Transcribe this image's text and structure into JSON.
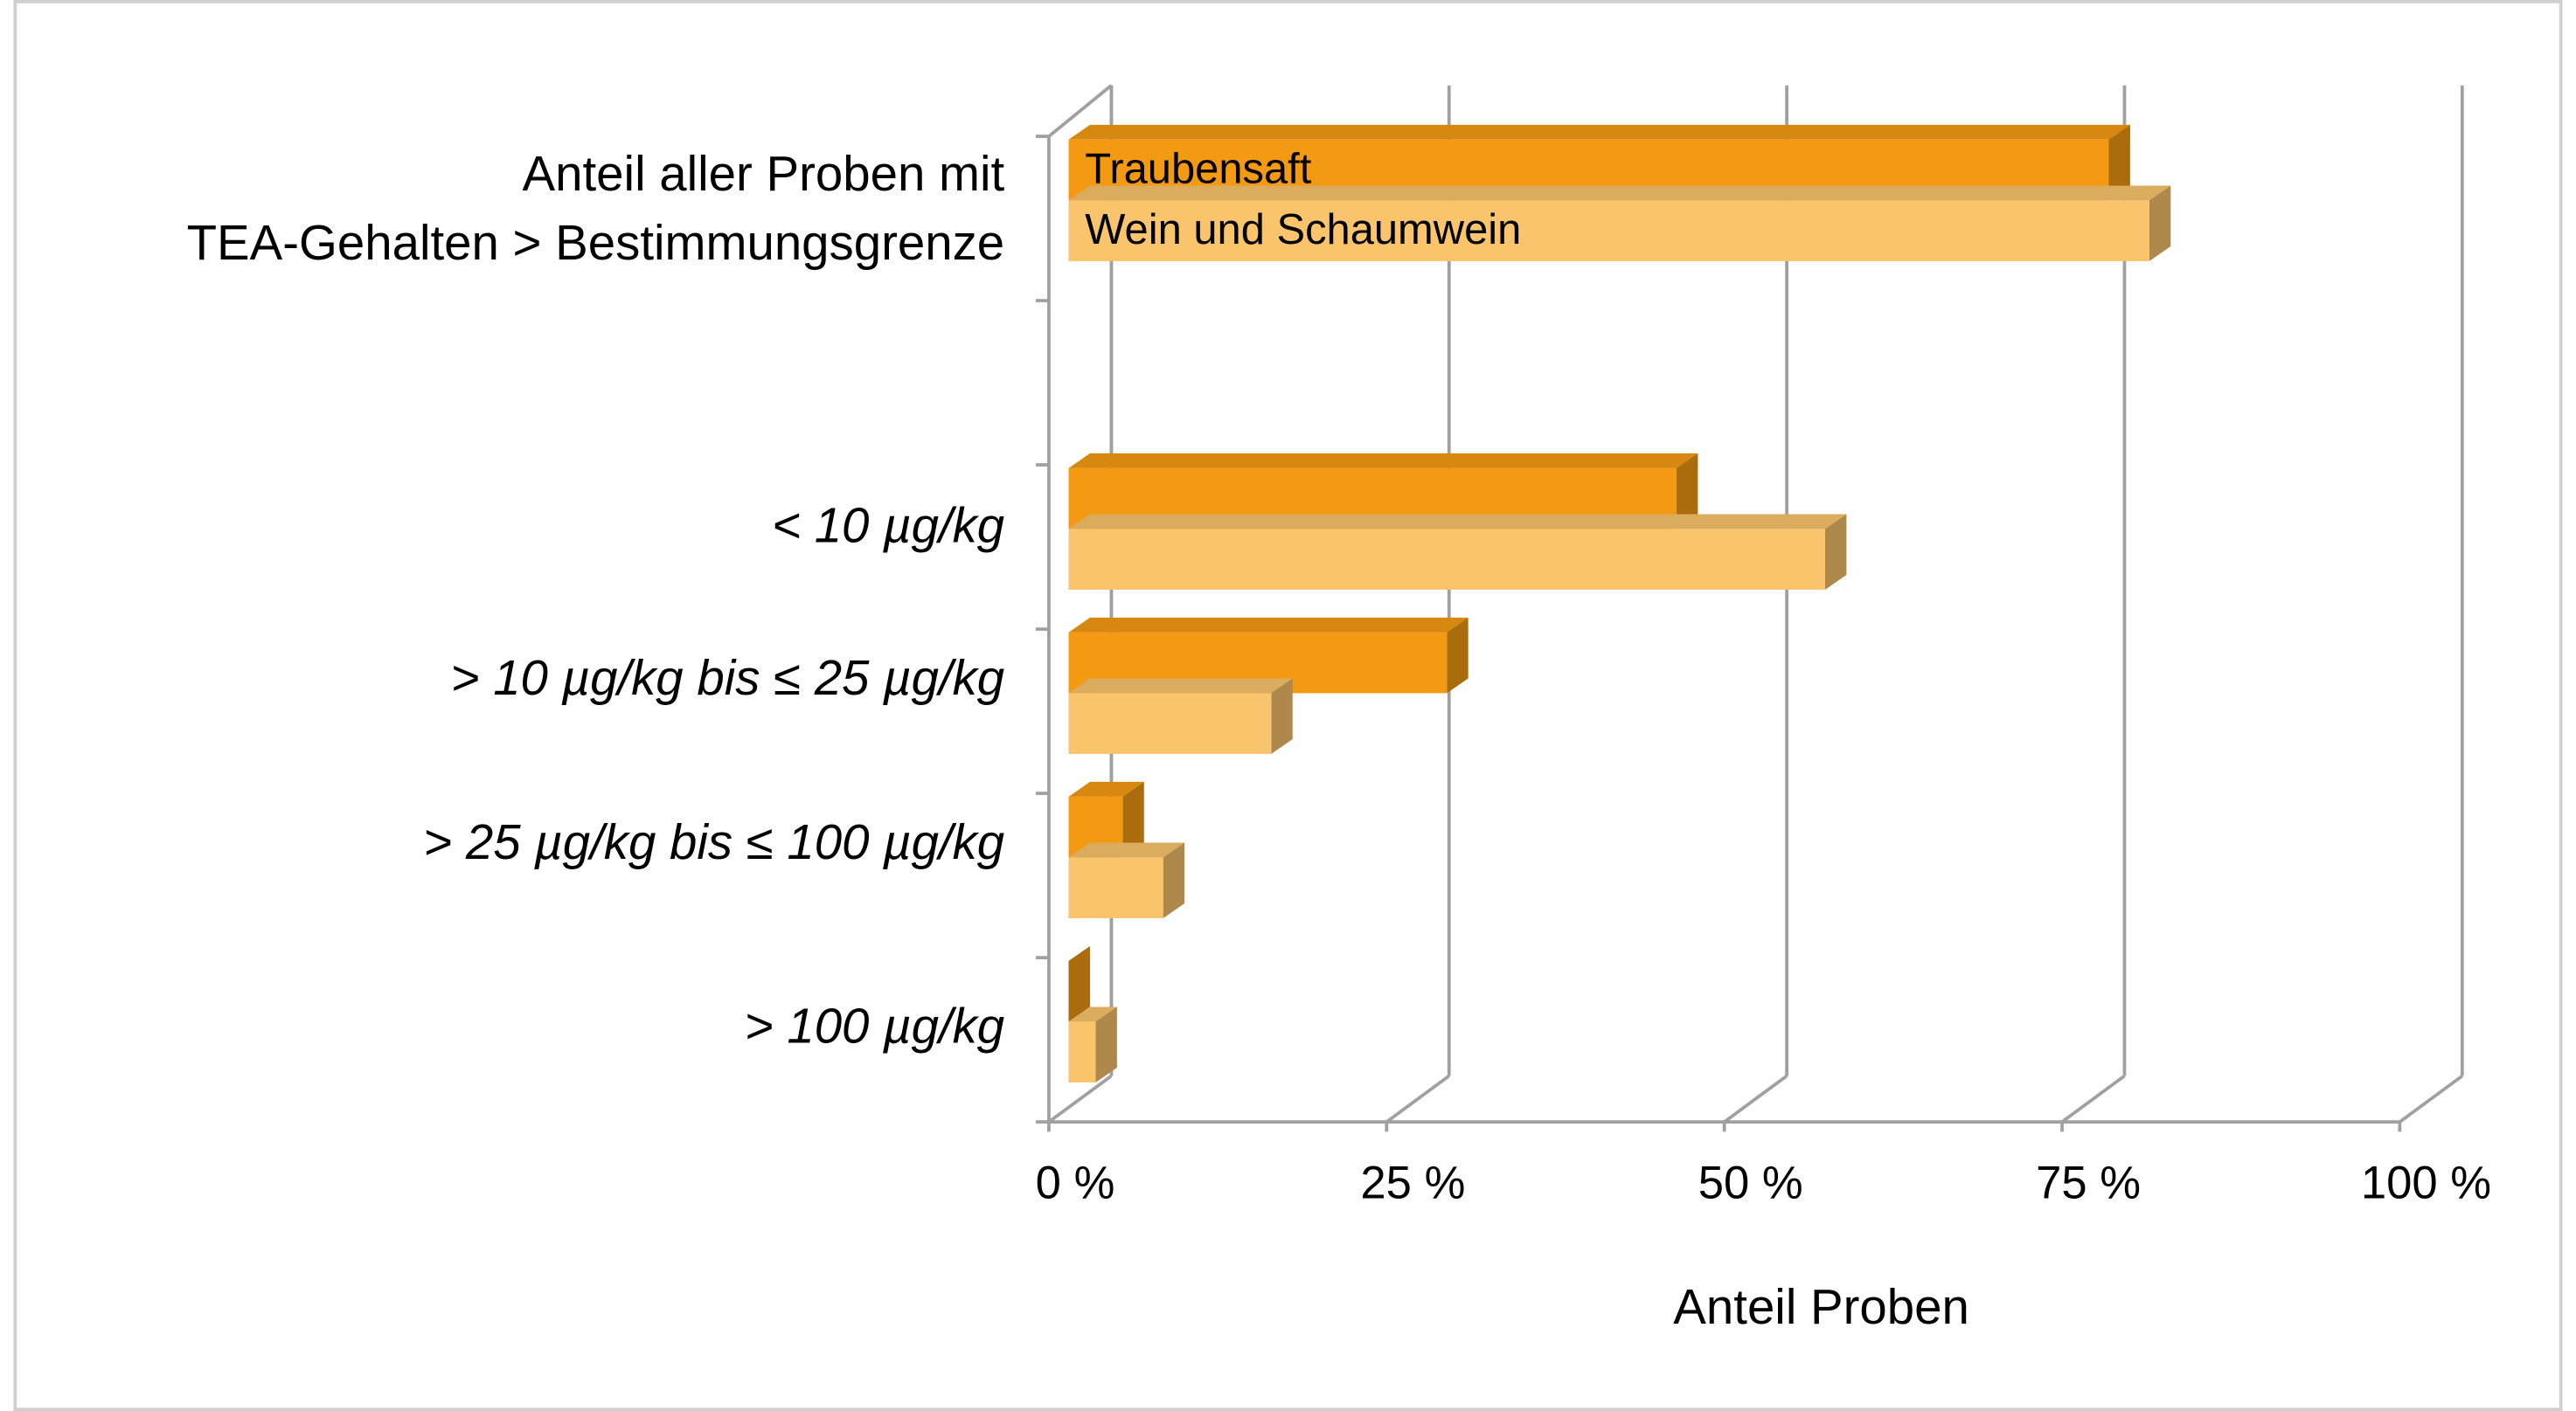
{
  "chart_data": {
    "type": "bar3d-horizontal",
    "x_label": "Anteil Proben",
    "categories": [
      [
        "Anteil aller Proben mit",
        "TEA-Gehalten > Bestimmungsgrenze"
      ],
      null,
      "< 10 µg/kg",
      "> 10 µg/kg bis ≤ 25 µg/kg",
      "> 25 µg/kg bis ≤ 100 µg/kg",
      "> 100 µg/kg"
    ],
    "series": [
      {
        "name": "Traubensaft",
        "color": "#f39a12",
        "values": [
          77,
          null,
          45,
          28,
          4,
          0
        ]
      },
      {
        "name": "Wein und Schaumwein",
        "color": "#f9c46b",
        "values": [
          80,
          null,
          56,
          15,
          7,
          2
        ]
      }
    ],
    "xlim": [
      0,
      100
    ],
    "xticks": [
      {
        "value": 0,
        "label": "0 %"
      },
      {
        "value": 25,
        "label": "25 %"
      },
      {
        "value": 50,
        "label": "50 %"
      },
      {
        "value": 75,
        "label": "75 %"
      },
      {
        "value": 100,
        "label": "100 %"
      }
    ],
    "grid": true,
    "legend": "inside-bars"
  }
}
